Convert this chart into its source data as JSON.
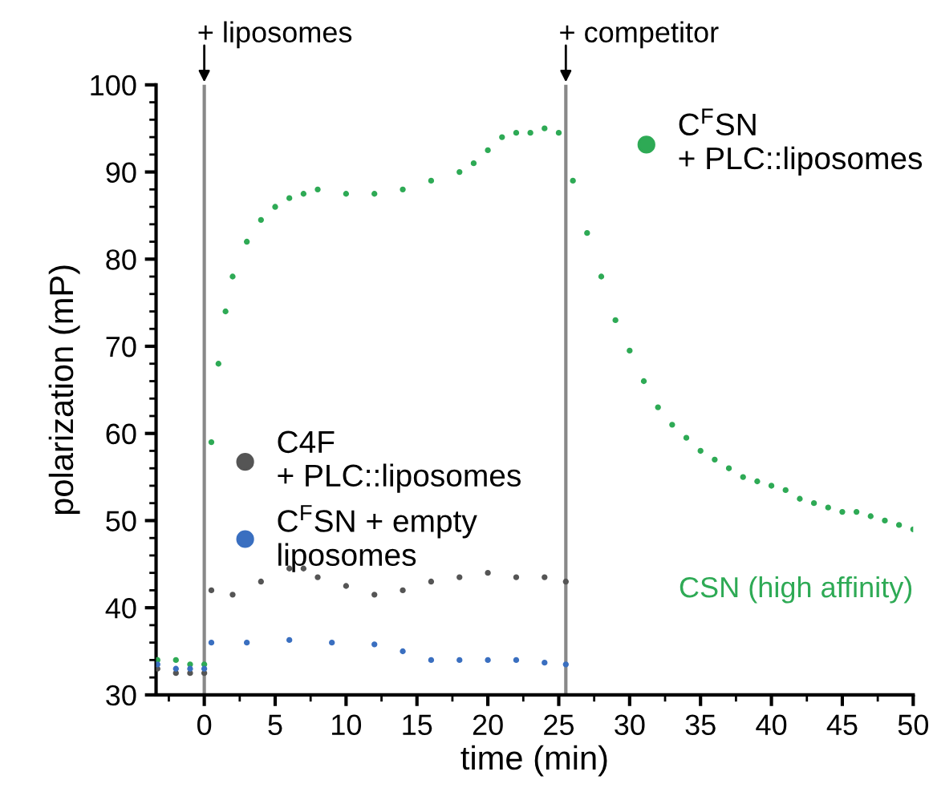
{
  "chart_data": {
    "type": "scatter",
    "xlabel": "time (min)",
    "ylabel": "polarization (mP)",
    "xlim": [
      -3.4,
      50
    ],
    "ylim": [
      30,
      100
    ],
    "xticks": [
      0,
      5,
      10,
      15,
      20,
      25,
      30,
      35,
      40,
      45,
      50
    ],
    "yticks": [
      30,
      40,
      50,
      60,
      70,
      80,
      90,
      100
    ],
    "grid": false,
    "marker": "circle",
    "legend": "top right",
    "series": [
      {
        "name": "C$^{F}$SN\n+ PLC::liposomes",
        "color": "#2eaa55",
        "x": [
          -3.3,
          -2,
          -1,
          0,
          0.5,
          1,
          1.5,
          2,
          3,
          4,
          5,
          6,
          7,
          8,
          10,
          12,
          14,
          16,
          18,
          19,
          20,
          21,
          22,
          23,
          24,
          25,
          26,
          27,
          28,
          29,
          30,
          31,
          32,
          33,
          34,
          35,
          36,
          37,
          38,
          39,
          40,
          41,
          42,
          43,
          44,
          45,
          46,
          47,
          48,
          49,
          50
        ],
        "values": [
          34,
          34,
          33.5,
          33.5,
          59,
          68,
          74,
          78,
          82,
          84.5,
          86,
          87,
          87.5,
          88,
          87.5,
          87.5,
          88,
          89,
          90,
          91,
          92.5,
          94,
          94.5,
          94.5,
          95,
          94.5,
          89,
          83,
          78,
          73,
          69.5,
          66,
          63,
          61,
          59.5,
          58,
          57,
          56,
          55,
          54.5,
          54,
          53.5,
          52.5,
          52,
          51.5,
          51,
          51,
          50.5,
          50,
          49.5,
          49
        ]
      },
      {
        "name": "C4F\n+ PLC::liposomes",
        "color": "#555555",
        "x": [
          -3.3,
          -2,
          -1,
          0,
          0.5,
          2,
          4,
          6,
          7,
          8,
          10,
          12,
          14,
          16,
          18,
          20,
          22,
          24,
          25.5
        ],
        "values": [
          33,
          32.5,
          32.5,
          32.5,
          42,
          41.5,
          43,
          44.5,
          44.5,
          43.5,
          42.5,
          41.5,
          42,
          43,
          43.5,
          44,
          43.5,
          43.5,
          43
        ]
      },
      {
        "name": "C$^{F}$SN + empty\nliposomes",
        "color": "#3a6fc0",
        "x": [
          -3.3,
          -2,
          -1,
          0,
          0.5,
          3,
          6,
          9,
          12,
          14,
          16,
          18,
          20,
          22,
          24,
          25.5
        ],
        "values": [
          33.5,
          33,
          33,
          33,
          36,
          36,
          36.3,
          36,
          35.8,
          35,
          34,
          34,
          34,
          34,
          33.7,
          33.5
        ]
      }
    ],
    "ref_lines": [
      {
        "axis": "x",
        "value": 0,
        "label": "+ liposomes",
        "color": "#888888"
      },
      {
        "axis": "x",
        "value": 25.5,
        "label": "+ competitor",
        "color": "#888888"
      }
    ],
    "annotations": [
      "CSN (high affinity)"
    ]
  }
}
